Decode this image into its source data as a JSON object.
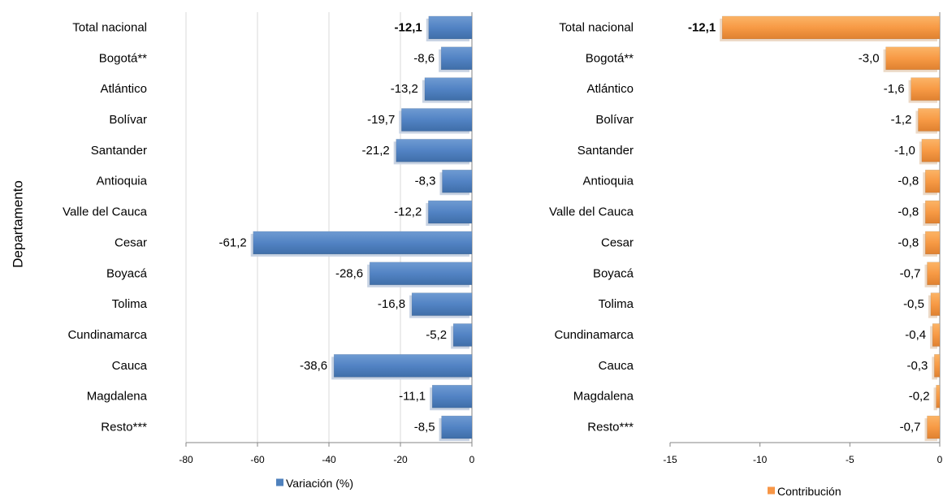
{
  "y_axis_title": "Departamento",
  "chart_data": [
    {
      "type": "bar",
      "orientation": "horizontal",
      "categories": [
        "Total nacional",
        "Bogotá**",
        "Atlántico",
        "Bolívar",
        "Santander",
        "Antioquia",
        "Valle del Cauca",
        "Cesar",
        "Boyacá",
        "Tolima",
        "Cundinamarca",
        "Cauca",
        "Magdalena",
        "Resto***"
      ],
      "series": [
        {
          "name": "Variación (%)",
          "values": [
            -12.1,
            -8.6,
            -13.2,
            -19.7,
            -21.2,
            -8.3,
            -12.2,
            -61.2,
            -28.6,
            -16.8,
            -5.2,
            -38.6,
            -11.1,
            -8.5
          ]
        }
      ],
      "data_labels": [
        "-12,1",
        "-8,6",
        "-13,2",
        "-19,7",
        "-21,2",
        "-8,3",
        "-12,2",
        "-61,2",
        "-28,6",
        "-16,8",
        "-5,2",
        "-38,6",
        "-11,1",
        "-8,5"
      ],
      "bold_categories": [
        "Total nacional"
      ],
      "xlim": [
        -80,
        0
      ],
      "xticks": [
        -80,
        -60,
        -40,
        -20,
        0
      ],
      "xtick_labels": [
        "-80",
        "-60",
        "-40",
        "-20",
        "0"
      ],
      "ylabel": "Departamento",
      "grid": true,
      "legend_position": "bottom",
      "color": "#4f81bd"
    },
    {
      "type": "bar",
      "orientation": "horizontal",
      "categories": [
        "Total nacional",
        "Bogotá**",
        "Atlántico",
        "Bolívar",
        "Santander",
        "Antioquia",
        "Valle del Cauca",
        "Cesar",
        "Boyacá",
        "Tolima",
        "Cundinamarca",
        "Cauca",
        "Magdalena",
        "Resto***"
      ],
      "series": [
        {
          "name": "Contribución",
          "values": [
            -12.1,
            -3.0,
            -1.6,
            -1.2,
            -1.0,
            -0.8,
            -0.8,
            -0.8,
            -0.7,
            -0.5,
            -0.4,
            -0.3,
            -0.2,
            -0.7
          ]
        }
      ],
      "data_labels": [
        "-12,1",
        "-3,0",
        "-1,6",
        "-1,2",
        "-1,0",
        "-0,8",
        "-0,8",
        "-0,8",
        "-0,7",
        "-0,5",
        "-0,4",
        "-0,3",
        "-0,2",
        "-0,7"
      ],
      "bold_categories": [
        "Total nacional"
      ],
      "xlim": [
        -15,
        0
      ],
      "xticks": [
        -15,
        -10,
        -5,
        0
      ],
      "xtick_labels": [
        "-15",
        "-10",
        "-5",
        "0"
      ],
      "grid": false,
      "legend_position": "bottom",
      "color": "#f79646"
    }
  ]
}
